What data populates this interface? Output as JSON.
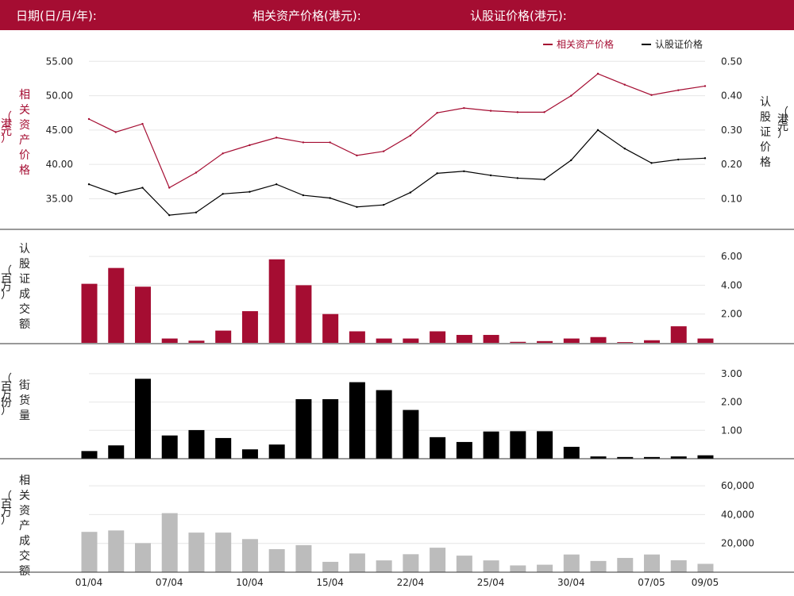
{
  "header": {
    "date_label": "日期(日/月/年):",
    "underlying_label": "相关资产价格(港元):",
    "warrant_label": "认股证价格(港元):"
  },
  "colors": {
    "header_bg": "#a50d32",
    "underlying": "#a50d32",
    "warrant": "#000000",
    "underlying_turnover": "#bcbcbc"
  },
  "chart_data": [
    {
      "type": "line",
      "legend": [
        "相关资产价格",
        "认股证价格"
      ],
      "legend_position": "top-right",
      "y_left_label": "相关资产价格",
      "y_left_unit": "（港元）",
      "y_right_label": "认股证价格",
      "y_right_unit": "（港元）",
      "y_left_ticks": [
        "55.00",
        "50.00",
        "45.00",
        "40.00",
        "35.00"
      ],
      "y_left_range": [
        31,
        57
      ],
      "y_right_ticks": [
        "0.50",
        "0.40",
        "0.30",
        "0.20",
        "0.10"
      ],
      "y_right_range": [
        0.0,
        0.52
      ],
      "series": [
        {
          "name": "相关资产价格",
          "axis": "left",
          "values": [
            46.6,
            44.7,
            45.9,
            36.6,
            38.8,
            41.6,
            42.8,
            43.9,
            43.2,
            43.2,
            41.3,
            41.9,
            44.2,
            47.5,
            48.2,
            47.8,
            47.6,
            47.6,
            50.0,
            53.2,
            51.6,
            50.1,
            50.8,
            51.4
          ]
        },
        {
          "name": "认股证价格",
          "axis": "left",
          "values": [
            37.1,
            35.7,
            36.6,
            32.6,
            33.0,
            35.7,
            36.0,
            37.1,
            35.5,
            35.1,
            33.8,
            34.1,
            35.9,
            38.7,
            39.0,
            38.4,
            38.0,
            37.8,
            40.6,
            45.0,
            42.3,
            40.2,
            40.7,
            40.9
          ]
        }
      ],
      "grid": true
    },
    {
      "type": "bar",
      "y_label": "认股证成交额",
      "y_unit": "（百万）",
      "y_ticks": [
        "6.00",
        "4.00",
        "2.00"
      ],
      "y_range": [
        0,
        7.0
      ],
      "values": [
        4.1,
        5.2,
        3.9,
        0.3,
        0.15,
        0.85,
        2.2,
        5.8,
        4.0,
        2.0,
        0.8,
        0.3,
        0.3,
        0.8,
        0.55,
        0.55,
        0.07,
        0.12,
        0.3,
        0.4,
        0.05,
        0.18,
        1.15,
        0.3
      ],
      "grid": true
    },
    {
      "type": "bar",
      "y_label": "街货量",
      "y_unit": "（百万份）",
      "y_ticks": [
        "3.00",
        "2.00",
        "1.00"
      ],
      "y_range": [
        0,
        3.5
      ],
      "values": [
        0.27,
        0.47,
        2.82,
        0.82,
        1.01,
        0.73,
        0.33,
        0.5,
        2.1,
        2.1,
        2.7,
        2.42,
        1.72,
        0.76,
        0.59,
        0.96,
        0.97,
        0.97,
        0.42,
        0.08,
        0.06,
        0.06,
        0.08,
        0.12
      ],
      "grid": true
    },
    {
      "type": "bar",
      "y_label": "相关资产成交额",
      "y_unit": "（百万）",
      "y_ticks": [
        "60,000",
        "40,000",
        "20,000"
      ],
      "y_range": [
        0,
        70000
      ],
      "values": [
        28000,
        29000,
        20200,
        41000,
        27500,
        27500,
        23000,
        16000,
        18800,
        7200,
        13000,
        8200,
        12500,
        17000,
        11500,
        8200,
        4700,
        5200,
        12300,
        7800,
        9900,
        12300,
        8300,
        5800
      ],
      "grid": true
    }
  ],
  "x_axis": {
    "tick_labels": [
      "01/04",
      "07/04",
      "10/04",
      "15/04",
      "22/04",
      "25/04",
      "30/04",
      "07/05",
      "09/05"
    ],
    "tick_index": [
      0,
      3,
      6,
      9,
      12,
      15,
      18,
      21,
      23
    ]
  }
}
